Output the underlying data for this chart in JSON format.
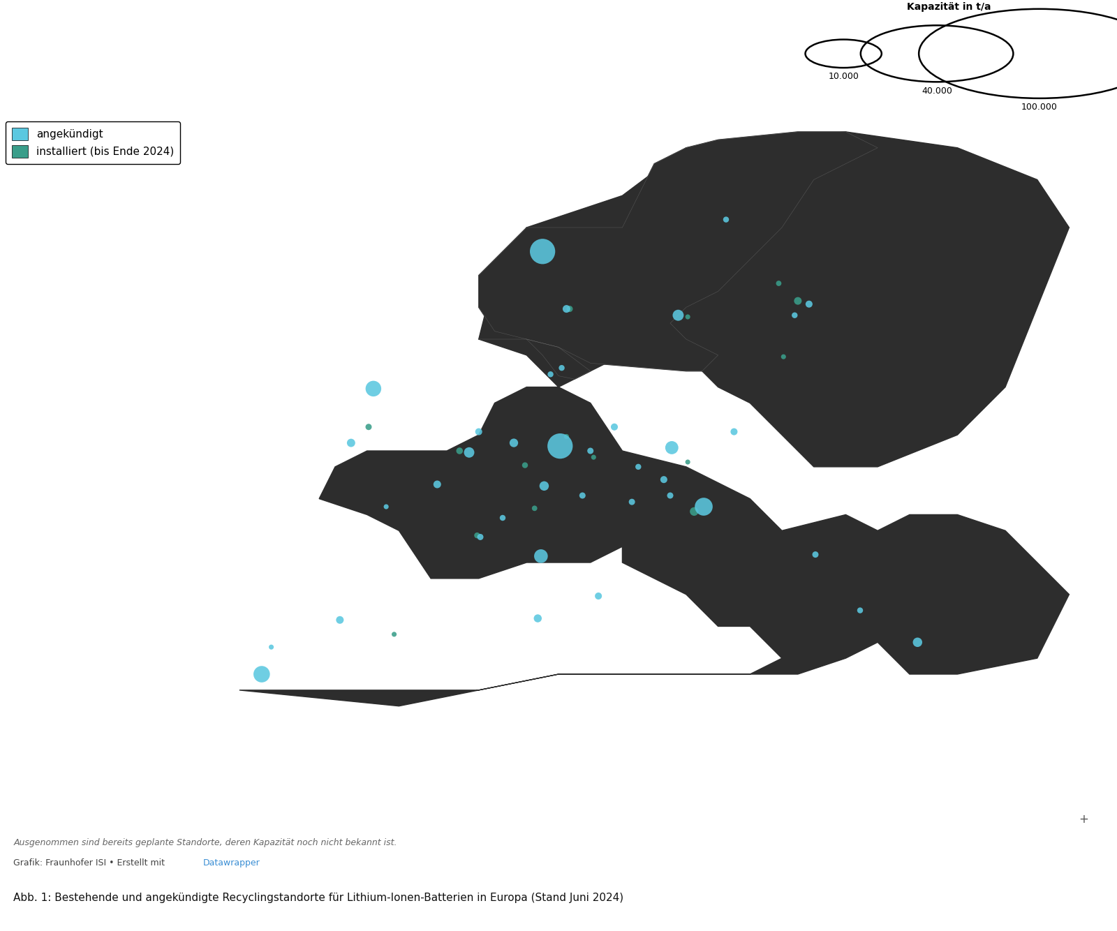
{
  "title": "Abb. 1: Bestehende und angekündigte Recyclingstandorte für Lithium-Ionen-Batterien in Europa (Stand Juni 2024)",
  "footnote1": "Ausgenommen sind bereits geplante Standorte, deren Kapazität noch nicht bekannt ist.",
  "footnote2_prefix": "Grafik: Fraunhofer ISI • Erstellt mit ",
  "footnote2_link": "Datawrapper",
  "legend_label_announced": "angekündigt",
  "legend_label_installed": "installiert (bis Ende 2024)",
  "legend_title": "Kapazität in t/a",
  "legend_sizes": [
    10000,
    40000,
    100000
  ],
  "legend_labels": [
    "10.000",
    "40.000",
    "100.000"
  ],
  "color_announced": "#5bc8e0",
  "color_installed": "#3a9e8a",
  "map_background": "#2a2a2a",
  "land_color": "#2d2d2d",
  "border_color": "#555555",
  "background_color": "#ffffff",
  "bubble_scale": 0.0022,
  "bubble_alpha": 0.88,
  "lon_min": -25,
  "lon_max": 45,
  "lat_min": 34,
  "lat_max": 72,
  "sites_announced": [
    {
      "lon": 9.0,
      "lat": 63.5,
      "capacity": 130000
    },
    {
      "lon": 25.7,
      "lat": 60.2,
      "capacity": 10000
    },
    {
      "lon": 17.5,
      "lat": 59.5,
      "capacity": 25000
    },
    {
      "lon": 20.5,
      "lat": 65.5,
      "capacity": 7000
    },
    {
      "lon": -1.6,
      "lat": 54.9,
      "capacity": 50000
    },
    {
      "lon": -3.0,
      "lat": 51.5,
      "capacity": 14000
    },
    {
      "lon": 2.4,
      "lat": 48.9,
      "capacity": 12000
    },
    {
      "lon": 5.1,
      "lat": 45.6,
      "capacity": 8000
    },
    {
      "lon": -0.8,
      "lat": 47.5,
      "capacity": 5000
    },
    {
      "lon": -3.7,
      "lat": 40.4,
      "capacity": 12000
    },
    {
      "lon": -8.6,
      "lat": 37.0,
      "capacity": 55000
    },
    {
      "lon": 4.4,
      "lat": 50.9,
      "capacity": 22000
    },
    {
      "lon": 5.0,
      "lat": 52.2,
      "capacity": 10000
    },
    {
      "lon": 10.1,
      "lat": 51.3,
      "capacity": 130000
    },
    {
      "lon": 9.1,
      "lat": 48.8,
      "capacity": 18000
    },
    {
      "lon": 13.5,
      "lat": 52.5,
      "capacity": 10000
    },
    {
      "lon": 7.2,
      "lat": 51.5,
      "capacity": 15000
    },
    {
      "lon": 11.5,
      "lat": 48.2,
      "capacity": 8000
    },
    {
      "lon": 12.0,
      "lat": 51.0,
      "capacity": 8000
    },
    {
      "lon": 17.1,
      "lat": 51.2,
      "capacity": 35000
    },
    {
      "lon": 21.0,
      "lat": 52.2,
      "capacity": 10000
    },
    {
      "lon": 16.6,
      "lat": 49.2,
      "capacity": 10000
    },
    {
      "lon": 14.6,
      "lat": 47.8,
      "capacity": 8000
    },
    {
      "lon": 19.1,
      "lat": 47.5,
      "capacity": 65000
    },
    {
      "lon": 17.0,
      "lat": 48.2,
      "capacity": 8000
    },
    {
      "lon": 26.1,
      "lat": 44.5,
      "capacity": 8000
    },
    {
      "lon": 12.5,
      "lat": 41.9,
      "capacity": 10000
    },
    {
      "lon": 8.9,
      "lat": 44.4,
      "capacity": 38000
    },
    {
      "lon": 10.2,
      "lat": 56.2,
      "capacity": 7000
    },
    {
      "lon": 24.8,
      "lat": 59.5,
      "capacity": 7000
    },
    {
      "lon": 32.5,
      "lat": 39.0,
      "capacity": 18000
    },
    {
      "lon": 28.9,
      "lat": 41.0,
      "capacity": 7000
    },
    {
      "lon": 15.0,
      "lat": 50.0,
      "capacity": 7000
    },
    {
      "lon": 6.5,
      "lat": 46.8,
      "capacity": 7000
    },
    {
      "lon": 10.5,
      "lat": 59.9,
      "capacity": 12000
    },
    {
      "lon": -8.0,
      "lat": 38.7,
      "capacity": 5000
    },
    {
      "lon": 9.5,
      "lat": 55.8,
      "capacity": 7000
    },
    {
      "lon": 8.7,
      "lat": 40.5,
      "capacity": 13000
    }
  ],
  "sites_installed": [
    {
      "lon": 25.0,
      "lat": 60.4,
      "capacity": 12000
    },
    {
      "lon": 10.7,
      "lat": 59.9,
      "capacity": 8000
    },
    {
      "lon": 18.1,
      "lat": 59.4,
      "capacity": 5000
    },
    {
      "lon": -1.9,
      "lat": 52.5,
      "capacity": 8000
    },
    {
      "lon": 3.8,
      "lat": 51.0,
      "capacity": 9000
    },
    {
      "lon": 7.9,
      "lat": 50.1,
      "capacity": 7000
    },
    {
      "lon": 12.2,
      "lat": 50.6,
      "capacity": 5000
    },
    {
      "lon": 10.5,
      "lat": 51.9,
      "capacity": 5000
    },
    {
      "lon": 4.9,
      "lat": 45.7,
      "capacity": 7000
    },
    {
      "lon": 18.5,
      "lat": 47.2,
      "capacity": 15000
    },
    {
      "lon": 18.1,
      "lat": 50.3,
      "capacity": 5000
    },
    {
      "lon": 24.1,
      "lat": 56.9,
      "capacity": 5000
    },
    {
      "lon": -0.3,
      "lat": 39.5,
      "capacity": 5000
    },
    {
      "lon": 23.8,
      "lat": 61.5,
      "capacity": 6000
    },
    {
      "lon": 8.5,
      "lat": 47.4,
      "capacity": 6000
    }
  ]
}
